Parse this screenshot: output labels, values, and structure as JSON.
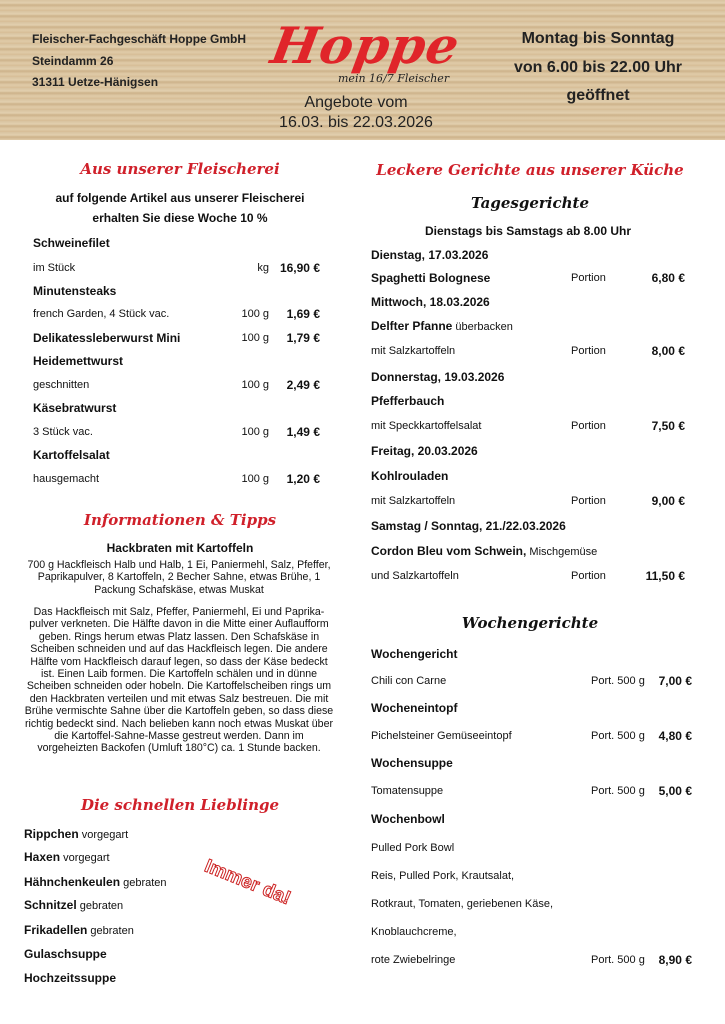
{
  "header": {
    "company": "Fleischer-Fachgeschäft Hoppe GmbH",
    "street": "Steindamm 26",
    "city": "31311 Uetze-Hänigsen",
    "logo": "Hoppe",
    "slogan": "mein 16/7 Fleischer",
    "offer_line1": "Angebote vom",
    "offer_line2": "16.03. bis 22.03.2026",
    "hours_line1": "Montag bis Sonntag",
    "hours_line2": "von 6.00 bis 22.00 Uhr",
    "hours_line3": "geöffnet"
  },
  "colors": {
    "accent": "#d0202a",
    "wood": "#d9c3a0"
  },
  "butcher": {
    "title": "Aus unserer Fleischerei",
    "intro1": "auf folgende Artikel aus unserer Fleischerei",
    "intro2": "erhalten Sie diese Woche 10 %",
    "items": [
      {
        "name": "Schweinefilet",
        "desc": "im Stück",
        "unit": "kg",
        "price": "16,90 €"
      },
      {
        "name": "Minutensteaks",
        "desc": "french Garden, 4 Stück vac.",
        "unit": "100 g",
        "price": "1,69 €"
      },
      {
        "name": "Delikatessleberwurst Mini",
        "desc": "",
        "unit": "100 g",
        "price": "1,79 €"
      },
      {
        "name": "Heidemettwurst",
        "desc": "geschnitten",
        "unit": "100 g",
        "price": "2,49 €"
      },
      {
        "name": "Käsebratwurst",
        "desc": "3 Stück vac.",
        "unit": "100 g",
        "price": "1,49 €"
      },
      {
        "name": "Kartoffelsalat",
        "desc": "hausgemacht",
        "unit": "100 g",
        "price": "1,20 €"
      }
    ]
  },
  "tips": {
    "title": "Informationen & Tipps",
    "recipe_title": "Hackbraten mit Kartoffeln",
    "ingredients": "700 g Hackfleisch Halb und Halb, 1 Ei, Paniermehl, Salz, Pfeffer, Paprikapulver, 8 Kartoffeln, 2 Becher Sahne, etwas Brühe, 1 Packung Schafskäse, etwas Muskat",
    "instructions": "Das Hackfleisch mit Salz, Pfeffer, Paniermehl, Ei und Paprika-pulver verkneten. Die Hälfte davon in die Mitte einer Auflaufform geben. Rings herum etwas Platz lassen. Den Schafskäse in Scheiben schneiden und auf das Hackfleisch legen. Die andere Hälfte vom Hackfleisch darauf legen, so dass der Käse bedeckt ist. Einen Laib formen. Die Kartoffeln schälen und in dünne Scheiben schneiden oder hobeln. Die Kartoffelscheiben rings um den Hackbraten verteilen und mit etwas Salz bestreuen. Die mit Brühe vermischte Sahne über die Kartoffeln geben, so dass diese richtig bedeckt sind. Nach belieben kann noch etwas Muskat über die Kartoffel-Sahne-Masse gestreut werden. Dann im vorgeheizten Backofen (Umluft 180°C) ca. 1 Stunde backen."
  },
  "favorites": {
    "title": "Die schnellen Lieblinge",
    "stamp": "Immer da!",
    "items": [
      {
        "name": "Rippchen",
        "note": "vorgegart"
      },
      {
        "name": "Haxen",
        "note": "vorgegart"
      },
      {
        "name": "Hähnchenkeulen",
        "note": "gebraten"
      },
      {
        "name": "Schnitzel",
        "note": "gebraten"
      },
      {
        "name": "Frikadellen",
        "note": "gebraten"
      },
      {
        "name": "Gulaschsuppe",
        "note": ""
      },
      {
        "name": "Hochzeitssuppe",
        "note": ""
      }
    ]
  },
  "kitchen": {
    "title": "Leckere Gerichte aus unserer Küche",
    "daily_title": "Tagesgerichte",
    "daily_note": "Dienstags bis Samstags ab 8.00 Uhr",
    "days": [
      {
        "day": "Dienstag, 17.03.2026",
        "dish": "Spaghetti Bolognese",
        "dish_note": "",
        "side": "",
        "unit": "Portion",
        "price": "6,80 €"
      },
      {
        "day": "Mittwoch, 18.03.2026",
        "dish": "Delfter Pfanne",
        "dish_note": "überbacken",
        "side": "mit Salzkartoffeln",
        "unit": "Portion",
        "price": "8,00 €"
      },
      {
        "day": "Donnerstag, 19.03.2026",
        "dish": "Pfefferbauch",
        "dish_note": "",
        "side": "mit Speckkartoffelsalat",
        "unit": "Portion",
        "price": "7,50 €"
      },
      {
        "day": "Freitag, 20.03.2026",
        "dish": "Kohlrouladen",
        "dish_note": "",
        "side": "mit Salzkartoffeln",
        "unit": "Portion",
        "price": "9,00 €"
      },
      {
        "day": "Samstag / Sonntag, 21./22.03.2026",
        "dish": "Cordon Bleu vom Schwein,",
        "dish_note": "Mischgemüse",
        "side": "und Salzkartoffeln",
        "unit": "Portion",
        "price": "11,50 €"
      }
    ],
    "weekly_title": "Wochengerichte",
    "weekly": [
      {
        "category": "Wochengericht",
        "lines": [
          "Chili con Carne"
        ],
        "unit": "Port. 500 g",
        "price": "7,00 €"
      },
      {
        "category": "Wocheneintopf",
        "lines": [
          "Pichelsteiner Gemüseeintopf"
        ],
        "unit": "Port. 500 g",
        "price": "4,80 €"
      },
      {
        "category": "Wochensuppe",
        "lines": [
          "Tomatensuppe"
        ],
        "unit": "Port. 500 g",
        "price": "5,00 €"
      },
      {
        "category": "Wochenbowl",
        "lines": [
          "Pulled Pork Bowl",
          "Reis, Pulled Pork, Krautsalat,",
          "Rotkraut, Tomaten, geriebenen Käse,",
          "Knoblauchcreme,",
          "rote Zwiebelringe"
        ],
        "unit": "Port. 500 g",
        "price": "8,90 €"
      }
    ]
  }
}
